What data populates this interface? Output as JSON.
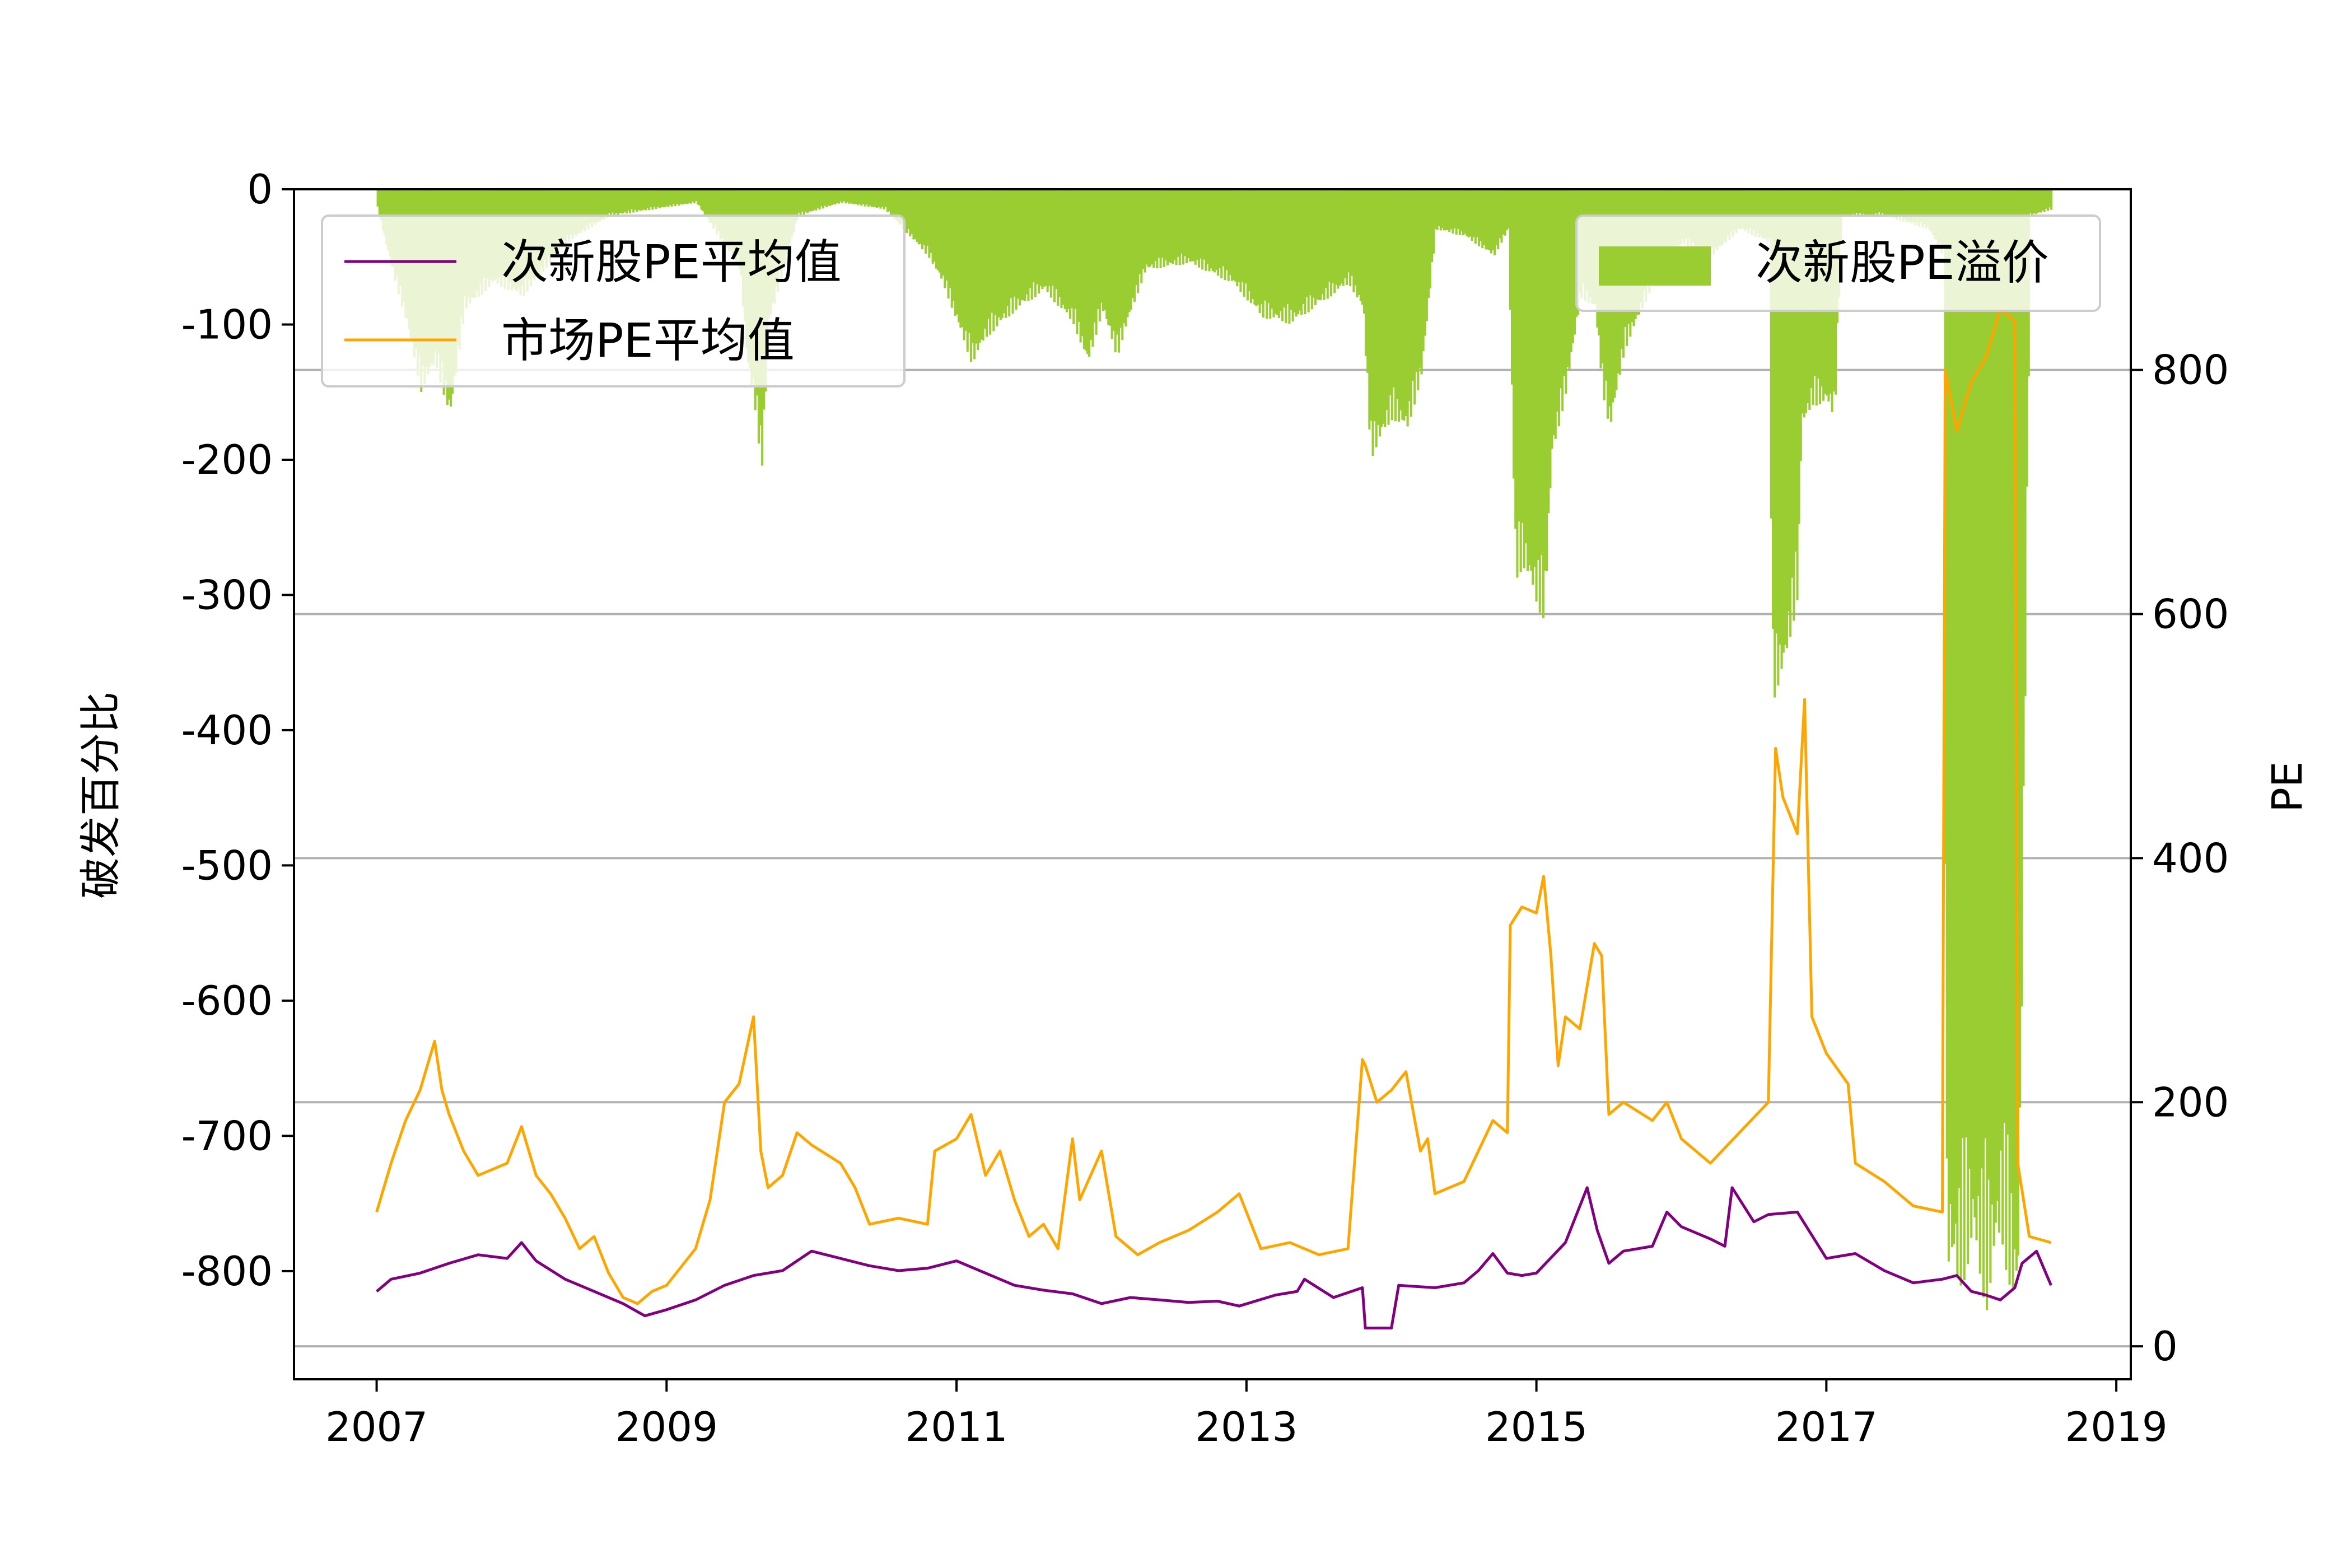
{
  "chart_data": {
    "type": "line+bar",
    "title": "",
    "xlabel": "",
    "ylabel_left": "破发百分比",
    "ylabel_right": "PE",
    "x_ticks": [
      "2007",
      "2009",
      "2011",
      "2013",
      "2015",
      "2017",
      "2019"
    ],
    "x_range": [
      2006.43,
      2019.1
    ],
    "left_axis": {
      "range": [
        -880,
        0
      ],
      "ticks": [
        "0",
        "-100",
        "-200",
        "-300",
        "-400",
        "-500",
        "-600",
        "-700",
        "-800"
      ],
      "tick_values": [
        0,
        -100,
        -200,
        -300,
        -400,
        -500,
        -600,
        -700,
        -800
      ]
    },
    "right_axis": {
      "range": [
        -27,
        948
      ],
      "ticks": [
        "0",
        "200",
        "400",
        "600",
        "800"
      ],
      "tick_values": [
        0,
        200,
        400,
        600,
        800
      ]
    },
    "grid": "horizontal lines at right-axis ticks",
    "legend_left": {
      "placement": "upper-left",
      "entries": [
        "次新股PE平均值",
        "市场PE平均值"
      ]
    },
    "legend_right": {
      "placement": "upper-right",
      "entries": [
        "次新股PE溢价"
      ]
    },
    "colors": {
      "new_stock_pe": "#800080",
      "market_pe": "#FFA500",
      "premium_bar": "#9ACD32",
      "grid": "#b0b0b0"
    },
    "series": [
      {
        "name": "次新股PE平均值",
        "axis": "right",
        "color": "#800080",
        "x": [
          2007.0,
          2007.1,
          2007.3,
          2007.5,
          2007.7,
          2007.9,
          2008.0,
          2008.1,
          2008.3,
          2008.5,
          2008.7,
          2008.85,
          2009.0,
          2009.2,
          2009.4,
          2009.6,
          2009.8,
          2010.0,
          2010.2,
          2010.4,
          2010.6,
          2010.8,
          2011.0,
          2011.2,
          2011.4,
          2011.6,
          2011.8,
          2012.0,
          2012.2,
          2012.4,
          2012.6,
          2012.8,
          2012.95,
          2013.2,
          2013.35,
          2013.4,
          2013.6,
          2013.8,
          2013.82,
          2014.0,
          2014.05,
          2014.3,
          2014.5,
          2014.6,
          2014.7,
          2014.8,
          2014.9,
          2015.0,
          2015.2,
          2015.35,
          2015.42,
          2015.5,
          2015.6,
          2015.8,
          2015.9,
          2016.0,
          2016.2,
          2016.3,
          2016.35,
          2016.5,
          2016.6,
          2016.8,
          2017.0,
          2017.2,
          2017.4,
          2017.6,
          2017.8,
          2017.9,
          2018.0,
          2018.1,
          2018.2,
          2018.3,
          2018.35,
          2018.45,
          2018.55
        ],
        "values": [
          45,
          55,
          60,
          68,
          75,
          72,
          85,
          70,
          55,
          45,
          35,
          25,
          30,
          38,
          50,
          58,
          62,
          78,
          72,
          66,
          62,
          64,
          70,
          60,
          50,
          46,
          43,
          35,
          40,
          38,
          36,
          37,
          33,
          42,
          45,
          55,
          40,
          48,
          15,
          15,
          50,
          48,
          52,
          62,
          76,
          60,
          58,
          60,
          85,
          130,
          95,
          68,
          78,
          82,
          110,
          98,
          88,
          82,
          130,
          102,
          108,
          110,
          72,
          76,
          62,
          52,
          55,
          58,
          45,
          42,
          38,
          48,
          68,
          78,
          50
        ]
      },
      {
        "name": "市场PE平均值",
        "axis": "right",
        "color": "#FFA500",
        "x": [
          2007.0,
          2007.1,
          2007.2,
          2007.3,
          2007.4,
          2007.45,
          2007.5,
          2007.6,
          2007.7,
          2007.8,
          2007.9,
          2008.0,
          2008.1,
          2008.2,
          2008.3,
          2008.4,
          2008.5,
          2008.6,
          2008.7,
          2008.8,
          2008.9,
          2009.0,
          2009.1,
          2009.2,
          2009.3,
          2009.4,
          2009.5,
          2009.6,
          2009.65,
          2009.7,
          2009.8,
          2009.9,
          2010.0,
          2010.2,
          2010.3,
          2010.4,
          2010.6,
          2010.8,
          2010.85,
          2011.0,
          2011.1,
          2011.2,
          2011.3,
          2011.4,
          2011.5,
          2011.6,
          2011.7,
          2011.8,
          2011.85,
          2012.0,
          2012.1,
          2012.2,
          2012.25,
          2012.4,
          2012.6,
          2012.8,
          2012.95,
          2013.1,
          2013.3,
          2013.5,
          2013.7,
          2013.8,
          2013.82,
          2013.9,
          2014.0,
          2014.1,
          2014.2,
          2014.25,
          2014.3,
          2014.5,
          2014.6,
          2014.7,
          2014.8,
          2014.82,
          2014.9,
          2015.0,
          2015.05,
          2015.1,
          2015.15,
          2015.2,
          2015.3,
          2015.4,
          2015.45,
          2015.5,
          2015.6,
          2015.8,
          2015.9,
          2016.0,
          2016.2,
          2016.4,
          2016.6,
          2016.65,
          2016.7,
          2016.8,
          2016.85,
          2016.9,
          2017.0,
          2017.15,
          2017.2,
          2017.4,
          2017.6,
          2017.8,
          2017.82,
          2017.9,
          2018.0,
          2018.1,
          2018.2,
          2018.3,
          2018.32,
          2018.4,
          2018.55
        ],
        "values": [
          110,
          150,
          185,
          210,
          250,
          210,
          190,
          160,
          140,
          145,
          150,
          180,
          140,
          125,
          105,
          80,
          90,
          60,
          40,
          35,
          45,
          50,
          65,
          80,
          120,
          200,
          215,
          270,
          160,
          130,
          140,
          175,
          165,
          150,
          130,
          100,
          105,
          100,
          160,
          170,
          190,
          140,
          160,
          120,
          90,
          100,
          80,
          170,
          120,
          160,
          90,
          80,
          75,
          85,
          95,
          110,
          125,
          80,
          85,
          75,
          80,
          235,
          230,
          200,
          210,
          225,
          160,
          170,
          125,
          135,
          160,
          185,
          175,
          345,
          360,
          355,
          385,
          320,
          230,
          270,
          260,
          330,
          320,
          190,
          200,
          185,
          200,
          170,
          150,
          175,
          200,
          490,
          450,
          420,
          530,
          270,
          240,
          215,
          150,
          135,
          115,
          110,
          800,
          750,
          790,
          810,
          850,
          840,
          150,
          90,
          85
        ]
      },
      {
        "name": "次新股PE溢价",
        "axis": "left",
        "type": "bar",
        "color": "#9ACD32",
        "x": [
          2007.0,
          2007.1,
          2007.2,
          2007.3,
          2007.4,
          2007.5,
          2007.6,
          2007.8,
          2008.0,
          2008.3,
          2008.6,
          2008.9,
          2009.2,
          2009.5,
          2009.55,
          2009.6,
          2009.65,
          2009.7,
          2009.9,
          2010.2,
          2010.5,
          2010.8,
          2010.9,
          2011.0,
          2011.1,
          2011.2,
          2011.4,
          2011.6,
          2011.8,
          2011.9,
          2012.0,
          2012.1,
          2012.2,
          2012.3,
          2012.6,
          2012.9,
          2013.1,
          2013.3,
          2013.5,
          2013.7,
          2013.8,
          2013.85,
          2014.0,
          2014.1,
          2014.2,
          2014.3,
          2014.5,
          2014.7,
          2014.8,
          2014.85,
          2014.9,
          2015.0,
          2015.05,
          2015.1,
          2015.2,
          2015.3,
          2015.4,
          2015.45,
          2015.5,
          2015.6,
          2015.8,
          2016.0,
          2016.2,
          2016.4,
          2016.6,
          2016.62,
          2016.7,
          2016.8,
          2016.82,
          2016.9,
          2017.0,
          2017.05,
          2017.1,
          2017.4,
          2017.7,
          2017.8,
          2017.82,
          2017.9,
          2018.0,
          2018.1,
          2018.2,
          2018.3,
          2018.32,
          2018.4,
          2018.55
        ],
        "values": [
          -15,
          -60,
          -100,
          -150,
          -130,
          -170,
          -90,
          -70,
          -80,
          -40,
          -20,
          -15,
          -10,
          -60,
          -130,
          -160,
          -210,
          -100,
          -20,
          -10,
          -15,
          -50,
          -70,
          -100,
          -130,
          -110,
          -90,
          -75,
          -100,
          -130,
          -90,
          -125,
          -90,
          -60,
          -55,
          -70,
          -95,
          -100,
          -85,
          -70,
          -90,
          -200,
          -170,
          -180,
          -140,
          -30,
          -35,
          -50,
          -30,
          -290,
          -280,
          -310,
          -320,
          -200,
          -150,
          -80,
          -90,
          -150,
          -180,
          -120,
          -70,
          -40,
          -50,
          -30,
          -40,
          -380,
          -360,
          -300,
          -180,
          -160,
          -160,
          -170,
          -20,
          -20,
          -30,
          -50,
          -800,
          -820,
          -790,
          -830,
          -780,
          -840,
          -810,
          -20,
          -15
        ]
      }
    ]
  }
}
